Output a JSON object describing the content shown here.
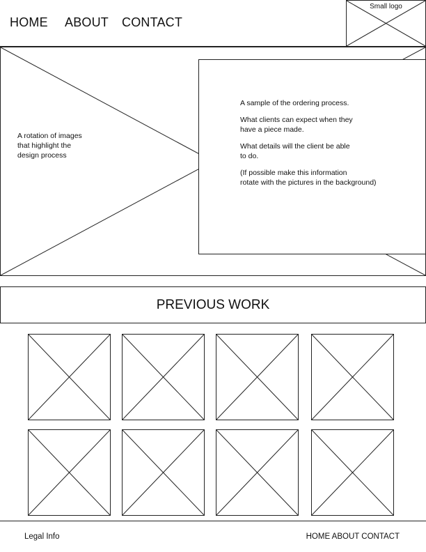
{
  "nav": {
    "items": [
      {
        "label": "HOME"
      },
      {
        "label": "ABOUT"
      },
      {
        "label": "CONTACT"
      }
    ]
  },
  "logo": {
    "label": "Small logo"
  },
  "hero": {
    "caption_lines": [
      "A rotation of images",
      "that highlight the",
      "design process"
    ],
    "info": {
      "line1": "A sample of the ordering process.",
      "line2a": "What clients can expect when they",
      "line2b": "have a piece made.",
      "line3a": "What details will the client be able",
      "line3b": "to do.",
      "line4a": "(If possible make this information",
      "line4b": "rotate with the pictures in the background)"
    }
  },
  "section": {
    "title": "PREVIOUS WORK"
  },
  "gallery": {
    "rows": 2,
    "columns": 4
  },
  "footer": {
    "legal": "Legal Info",
    "nav_text": "HOME ABOUT CONTACT"
  }
}
